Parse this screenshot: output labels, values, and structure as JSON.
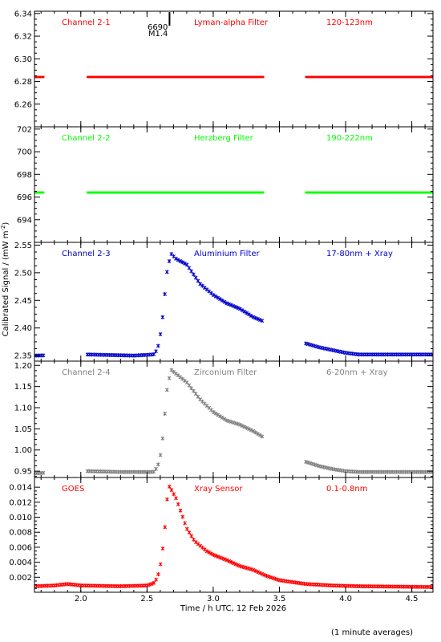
{
  "x_axis": {
    "label": "Time / h UTC, 12 Feb 2026",
    "range": [
      1.65,
      4.66
    ],
    "ticks": [
      2.0,
      2.5,
      3.0,
      3.5,
      4.0,
      4.5
    ],
    "tick_labels": [
      "2.0",
      "2.5",
      "3.0",
      "3.5",
      "4.0",
      "4.5"
    ]
  },
  "y_axis_label": "Calibrated Signal / (mW m",
  "y_axis_label_sup": "-2",
  "y_axis_label_end": ")",
  "footer": "(1 minute averages)",
  "marker": {
    "x": 2.67,
    "label1": "6690",
    "label2": "M1.4"
  },
  "colors": {
    "red": "#ff0000",
    "green": "#00ff00",
    "blue": "#0000cc",
    "gray": "#808080"
  },
  "chart_data": [
    {
      "type": "scatter",
      "id": "ch21",
      "channel": "Channel 2-1",
      "filter": "Lyman-alpha Filter",
      "band": "120-123nm",
      "color": "#ff0000",
      "ylim": [
        6.24,
        6.342
      ],
      "yticks": [
        6.26,
        6.28,
        6.3,
        6.32,
        6.34
      ],
      "ytick_labels": [
        "6.26",
        "6.28",
        "6.30",
        "6.32",
        "6.34"
      ],
      "segments": [
        [
          1.65,
          1.72
        ],
        [
          2.05,
          3.38
        ],
        [
          3.7,
          4.66
        ]
      ],
      "profile": "flat",
      "base": 6.284
    },
    {
      "type": "scatter",
      "id": "ch22",
      "channel": "Channel 2-2",
      "filter": "Herzberg Filter",
      "band": "190-222nm",
      "color": "#00ff00",
      "ylim": [
        692,
        702.2
      ],
      "yticks": [
        694,
        696,
        698,
        700,
        702
      ],
      "ytick_labels": [
        "694",
        "696",
        "698",
        "700",
        "702"
      ],
      "segments": [
        [
          1.65,
          1.72
        ],
        [
          2.05,
          3.38
        ],
        [
          3.7,
          4.66
        ]
      ],
      "profile": "flat",
      "base": 696.4
    },
    {
      "type": "scatter",
      "id": "ch23",
      "channel": "Channel 2-3",
      "filter": "Aluminium Filter",
      "band": "17-80nm + Xray",
      "color": "#0000cc",
      "ylim": [
        2.34,
        2.555
      ],
      "yticks": [
        2.35,
        2.4,
        2.45,
        2.5,
        2.55
      ],
      "ytick_labels": [
        "2.35",
        "2.40",
        "2.45",
        "2.50",
        "2.55"
      ],
      "segments": [
        [
          1.65,
          1.72
        ],
        [
          2.05,
          3.38
        ],
        [
          3.7,
          4.66
        ]
      ],
      "profile": "flare",
      "curve": [
        [
          1.65,
          2.35
        ],
        [
          2.05,
          2.352
        ],
        [
          2.4,
          2.35
        ],
        [
          2.55,
          2.352
        ],
        [
          2.58,
          2.362
        ],
        [
          2.61,
          2.4
        ],
        [
          2.63,
          2.45
        ],
        [
          2.65,
          2.5
        ],
        [
          2.68,
          2.535
        ],
        [
          2.72,
          2.525
        ],
        [
          2.8,
          2.515
        ],
        [
          2.9,
          2.48
        ],
        [
          3.0,
          2.46
        ],
        [
          3.1,
          2.445
        ],
        [
          3.2,
          2.435
        ],
        [
          3.3,
          2.42
        ],
        [
          3.38,
          2.412
        ],
        [
          3.7,
          2.372
        ],
        [
          3.8,
          2.365
        ],
        [
          3.9,
          2.36
        ],
        [
          4.0,
          2.355
        ],
        [
          4.1,
          2.352
        ],
        [
          4.66,
          2.352
        ]
      ]
    },
    {
      "type": "scatter",
      "id": "ch24",
      "channel": "Channel 2-4",
      "filter": "Zirconium Filter",
      "band": "6-20nm + Xray",
      "color": "#808080",
      "ylim": [
        0.935,
        1.21
      ],
      "yticks": [
        0.95,
        1.0,
        1.05,
        1.1,
        1.15,
        1.2
      ],
      "ytick_labels": [
        "0.95",
        "1.00",
        "1.05",
        "1.10",
        "1.15",
        "1.20"
      ],
      "segments": [
        [
          1.65,
          1.72
        ],
        [
          2.05,
          3.38
        ],
        [
          3.7,
          4.66
        ]
      ],
      "profile": "flare",
      "curve": [
        [
          1.65,
          0.945
        ],
        [
          2.05,
          0.95
        ],
        [
          2.3,
          0.948
        ],
        [
          2.55,
          0.948
        ],
        [
          2.58,
          0.96
        ],
        [
          2.61,
          1.0
        ],
        [
          2.63,
          1.07
        ],
        [
          2.65,
          1.14
        ],
        [
          2.68,
          1.19
        ],
        [
          2.72,
          1.18
        ],
        [
          2.8,
          1.16
        ],
        [
          2.9,
          1.12
        ],
        [
          3.0,
          1.09
        ],
        [
          3.1,
          1.07
        ],
        [
          3.2,
          1.06
        ],
        [
          3.3,
          1.045
        ],
        [
          3.38,
          1.03
        ],
        [
          3.7,
          0.972
        ],
        [
          3.8,
          0.962
        ],
        [
          3.9,
          0.955
        ],
        [
          4.0,
          0.95
        ],
        [
          4.1,
          0.948
        ],
        [
          4.66,
          0.948
        ]
      ]
    },
    {
      "type": "scatter",
      "id": "goes",
      "channel": "GOES",
      "filter": "Xray Sensor",
      "band": "0.1-0.8nm",
      "color": "#ff0000",
      "ylim": [
        0.0,
        0.0153
      ],
      "yticks": [
        0.002,
        0.004,
        0.006,
        0.008,
        0.01,
        0.012,
        0.014
      ],
      "ytick_labels": [
        "0.002",
        "0.004",
        "0.006",
        "0.008",
        "0.010",
        "0.012",
        "0.014"
      ],
      "segments": [
        [
          1.65,
          4.66
        ]
      ],
      "profile": "flare",
      "curve": [
        [
          1.65,
          0.0008
        ],
        [
          1.8,
          0.0009
        ],
        [
          1.9,
          0.0011
        ],
        [
          2.0,
          0.0009
        ],
        [
          2.3,
          0.0008
        ],
        [
          2.5,
          0.0009
        ],
        [
          2.55,
          0.0012
        ],
        [
          2.58,
          0.002
        ],
        [
          2.6,
          0.0035
        ],
        [
          2.62,
          0.006
        ],
        [
          2.64,
          0.0095
        ],
        [
          2.66,
          0.0143
        ],
        [
          2.68,
          0.0138
        ],
        [
          2.72,
          0.0125
        ],
        [
          2.76,
          0.0105
        ],
        [
          2.8,
          0.0085
        ],
        [
          2.86,
          0.0068
        ],
        [
          2.95,
          0.0055
        ],
        [
          3.0,
          0.005
        ],
        [
          3.1,
          0.0043
        ],
        [
          3.2,
          0.0035
        ],
        [
          3.3,
          0.003
        ],
        [
          3.4,
          0.0022
        ],
        [
          3.5,
          0.0016
        ],
        [
          3.7,
          0.0011
        ],
        [
          3.9,
          0.0009
        ],
        [
          4.1,
          0.0008
        ],
        [
          4.66,
          0.0007
        ]
      ]
    }
  ]
}
